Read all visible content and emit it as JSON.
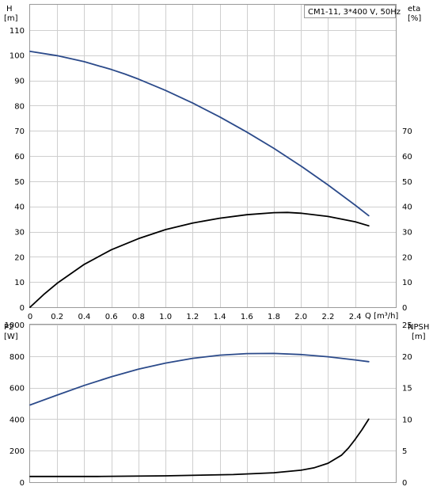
{
  "chart_data": [
    {
      "type": "line",
      "panel": "upper",
      "legend": "CM1-11, 3*400 V, 50Hz",
      "legend_placement": "top-right",
      "grid": true,
      "left_axis_title_line1": "H",
      "left_axis_title_line2": "[m]",
      "right_axis_title_line1": "eta",
      "right_axis_title_line2": "[%]",
      "xlabel": "Q [m³/h]",
      "xlim": [
        0,
        2.7
      ],
      "ylim_left": [
        0,
        120
      ],
      "ylim_right": [
        0,
        120
      ],
      "x_ticks": [
        "0",
        "0.2",
        "0.4",
        "0.6",
        "0.8",
        "1.0",
        "1.2",
        "1.4",
        "1.6",
        "1.8",
        "2.0",
        "2.2",
        "2.4"
      ],
      "x_tick_values": [
        0,
        0.2,
        0.4,
        0.6,
        0.8,
        1.0,
        1.2,
        1.4,
        1.6,
        1.8,
        2.0,
        2.2,
        2.4
      ],
      "left_ticks": [
        "0",
        "10",
        "20",
        "30",
        "40",
        "50",
        "60",
        "70",
        "80",
        "90",
        "100",
        "110"
      ],
      "left_tick_values": [
        0,
        10,
        20,
        30,
        40,
        50,
        60,
        70,
        80,
        90,
        100,
        110
      ],
      "right_ticks": [
        "0",
        "10",
        "20",
        "30",
        "40",
        "50",
        "60",
        "70"
      ],
      "right_tick_values": [
        0,
        10,
        20,
        30,
        40,
        50,
        60,
        70
      ],
      "series": [
        {
          "axis": "left",
          "color": "#2b4a8a",
          "x": [
            0,
            0.2,
            0.4,
            0.6,
            0.7,
            0.8,
            1.0,
            1.2,
            1.4,
            1.6,
            1.8,
            2.0,
            2.2,
            2.4,
            2.5
          ],
          "y": [
            101.5,
            99.8,
            97.4,
            94.3,
            92.5,
            90.5,
            86.0,
            81.0,
            75.5,
            69.5,
            63.0,
            56.0,
            48.5,
            40.5,
            36.3
          ]
        },
        {
          "axis": "right",
          "color": "#000000",
          "x": [
            0,
            0.1,
            0.2,
            0.4,
            0.6,
            0.8,
            1.0,
            1.2,
            1.4,
            1.6,
            1.8,
            1.9,
            2.0,
            2.2,
            2.4,
            2.5
          ],
          "y": [
            0,
            5.0,
            9.5,
            17.0,
            22.8,
            27.2,
            30.8,
            33.4,
            35.3,
            36.7,
            37.5,
            37.6,
            37.3,
            36.0,
            33.9,
            32.3
          ]
        }
      ]
    },
    {
      "type": "line",
      "panel": "lower",
      "grid": true,
      "left_axis_title_line1": "P2",
      "left_axis_title_line2": "[W]",
      "right_axis_title_line1": "NPSH",
      "right_axis_title_line2": "[m]",
      "xlim": [
        0,
        2.7
      ],
      "ylim_left": [
        0,
        1000
      ],
      "ylim_right": [
        0,
        25
      ],
      "left_ticks": [
        "0",
        "200",
        "400",
        "600",
        "800",
        "1000"
      ],
      "left_tick_values": [
        0,
        200,
        400,
        600,
        800,
        1000
      ],
      "right_ticks": [
        "0",
        "5",
        "10",
        "15",
        "20",
        "25"
      ],
      "right_tick_values": [
        0,
        5,
        10,
        15,
        20,
        25
      ],
      "series": [
        {
          "axis": "left",
          "color": "#2b4a8a",
          "x": [
            0,
            0.2,
            0.4,
            0.6,
            0.8,
            1.0,
            1.2,
            1.4,
            1.6,
            1.8,
            2.0,
            2.2,
            2.4,
            2.5
          ],
          "y": [
            490,
            553,
            614,
            669,
            717,
            756,
            786,
            806,
            816,
            817,
            810,
            796,
            776,
            765
          ]
        },
        {
          "axis": "right",
          "color": "#000000",
          "x": [
            0,
            0.5,
            1.0,
            1.5,
            1.8,
            2.0,
            2.1,
            2.2,
            2.3,
            2.35,
            2.4,
            2.45,
            2.5
          ],
          "y": [
            0.9,
            0.9,
            1.0,
            1.2,
            1.5,
            1.9,
            2.3,
            3.0,
            4.3,
            5.4,
            6.8,
            8.3,
            10.0
          ]
        }
      ]
    }
  ]
}
